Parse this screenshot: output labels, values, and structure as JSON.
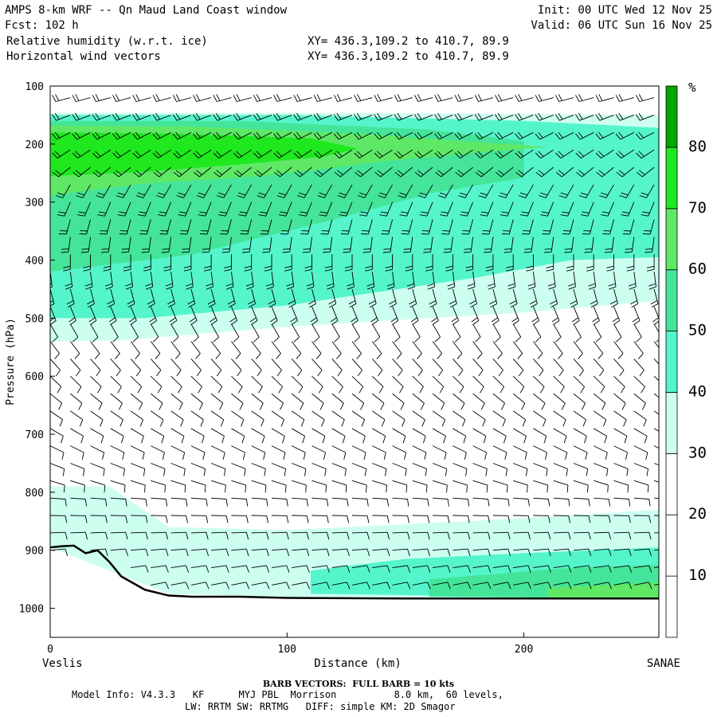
{
  "header": {
    "title": "AMPS 8-km WRF -- Qn Maud Land Coast window",
    "forecast": "Fcst: 102 h",
    "field1": "Relative humidity (w.r.t. ice)",
    "field2": "Horizontal wind vectors",
    "xy1": "XY= 436.3,109.2 to 410.7, 89.9",
    "xy2": "XY= 436.3,109.2 to 410.7, 89.9",
    "init": "Init: 00 UTC Wed 12 Nov 25",
    "valid": "Valid: 06 UTC Sun 16 Nov 25"
  },
  "footer": {
    "barb": "BARB VECTORS:  FULL BARB = 10 kts",
    "model": "Model Info: V4.3.3   KF      MYJ PBL  Morrison          8.0 km,  60 levels,",
    "physics": "LW: RRTM SW: RRTMG   DIFF: simple KM: 2D Smagor"
  },
  "colors": {
    "c1": "#ccfff0",
    "c2": "#55f5cc",
    "c3": "#44e59a",
    "c4": "#5ee866",
    "c5": "#1fe81f",
    "c6": "#00a600",
    "terrain": "#000000",
    "barb": "#000000"
  },
  "chart_data": {
    "type": "heatmap",
    "title": "Relative humidity (w.r.t. ice)",
    "xlabel": "Distance (km)",
    "ylabel": "Pressure (hPa)",
    "xlim": [
      0,
      257
    ],
    "ylim": [
      1050,
      100
    ],
    "x_ticks": [
      0,
      100,
      200
    ],
    "y_ticks": [
      100,
      200,
      300,
      400,
      500,
      600,
      700,
      800,
      900,
      1000
    ],
    "left_endpoint": "Veslis",
    "right_endpoint": "SANAE",
    "colorbar": {
      "unit": "%",
      "levels": [
        10,
        20,
        30,
        40,
        50,
        60,
        70,
        80
      ]
    },
    "rh_bands": [
      {
        "range": "30-40",
        "color": "c1",
        "lower": [
          [
            0,
            146
          ],
          [
            100,
            146
          ],
          [
            200,
            148
          ],
          [
            257,
            150
          ]
        ],
        "upper": [
          [
            0,
            540
          ],
          [
            30,
            538
          ],
          [
            100,
            515
          ],
          [
            200,
            490
          ],
          [
            257,
            470
          ]
        ]
      },
      {
        "range": "40-50",
        "color": "c2",
        "lower": [
          [
            0,
            150
          ],
          [
            100,
            150
          ],
          [
            200,
            160
          ],
          [
            257,
            172
          ]
        ],
        "upper": [
          [
            0,
            500
          ],
          [
            40,
            500
          ],
          [
            100,
            478
          ],
          [
            180,
            430
          ],
          [
            220,
            400
          ],
          [
            257,
            395
          ]
        ]
      },
      {
        "range": "50-60",
        "color": "c3",
        "lower": [
          [
            0,
            160
          ],
          [
            80,
            160
          ],
          [
            160,
            175
          ],
          [
            200,
            195
          ]
        ],
        "upper": [
          [
            0,
            420
          ],
          [
            60,
            390
          ],
          [
            120,
            330
          ],
          [
            160,
            285
          ],
          [
            200,
            258
          ]
        ]
      },
      {
        "range": "60-70",
        "color": "c4",
        "lower": [
          [
            0,
            168
          ],
          [
            60,
            170
          ],
          [
            130,
            182
          ]
        ],
        "upper": [
          [
            0,
            288
          ],
          [
            40,
            268
          ],
          [
            90,
            255
          ],
          [
            140,
            230
          ],
          [
            180,
            215
          ],
          [
            210,
            205
          ]
        ]
      },
      {
        "range": "70-80",
        "color": "c5",
        "lower": [
          [
            0,
            180
          ],
          [
            50,
            182
          ],
          [
            110,
            190
          ]
        ],
        "upper": [
          [
            0,
            255
          ],
          [
            40,
            248
          ],
          [
            80,
            235
          ],
          [
            115,
            222
          ],
          [
            130,
            208
          ]
        ]
      },
      {
        "range": "30-40 low",
        "color": "c1",
        "lower": [
          [
            0,
            790
          ],
          [
            25,
            790
          ],
          [
            50,
            860
          ],
          [
            100,
            865
          ],
          [
            150,
            855
          ],
          [
            200,
            845
          ],
          [
            257,
            830
          ]
        ],
        "upper": [
          [
            0,
            895
          ],
          [
            50,
            975
          ],
          [
            100,
            980
          ],
          [
            257,
            985
          ]
        ]
      },
      {
        "range": "40-50 low",
        "color": "c2",
        "lower": [
          [
            110,
            935
          ],
          [
            150,
            915
          ],
          [
            200,
            905
          ],
          [
            257,
            895
          ]
        ],
        "upper": [
          [
            110,
            975
          ],
          [
            257,
            983
          ]
        ]
      },
      {
        "range": "50-60 low",
        "color": "c3",
        "lower": [
          [
            160,
            950
          ],
          [
            220,
            930
          ],
          [
            257,
            925
          ]
        ],
        "upper": [
          [
            160,
            980
          ],
          [
            257,
            983
          ]
        ]
      },
      {
        "range": "60-70 low",
        "color": "c4",
        "lower": [
          [
            210,
            965
          ],
          [
            257,
            955
          ]
        ],
        "upper": [
          [
            210,
            982
          ],
          [
            257,
            984
          ]
        ]
      }
    ],
    "terrain": [
      [
        0,
        895
      ],
      [
        5,
        893
      ],
      [
        10,
        892
      ],
      [
        15,
        905
      ],
      [
        20,
        900
      ],
      [
        25,
        920
      ],
      [
        30,
        945
      ],
      [
        40,
        968
      ],
      [
        50,
        978
      ],
      [
        60,
        980
      ],
      [
        80,
        980
      ],
      [
        100,
        982
      ],
      [
        150,
        983
      ],
      [
        200,
        983
      ],
      [
        257,
        983
      ]
    ],
    "barb_columns_km": [
      0,
      8.5,
      17,
      25.5,
      34,
      42.5,
      51,
      59.5,
      68,
      76.5,
      85,
      93.5,
      102,
      110.5,
      119,
      127.5,
      136,
      144.5,
      153,
      161.5,
      170,
      178.5,
      187,
      195.5,
      204,
      212.5,
      221,
      229.5,
      238,
      246.5,
      255
    ],
    "barb_levels_hPa": [
      120,
      150,
      180,
      210,
      240,
      270,
      300,
      330,
      360,
      390,
      420,
      450,
      480,
      510,
      540,
      570,
      600,
      630,
      660,
      690,
      720,
      750,
      780,
      810,
      840,
      870,
      900,
      930,
      960
    ]
  }
}
